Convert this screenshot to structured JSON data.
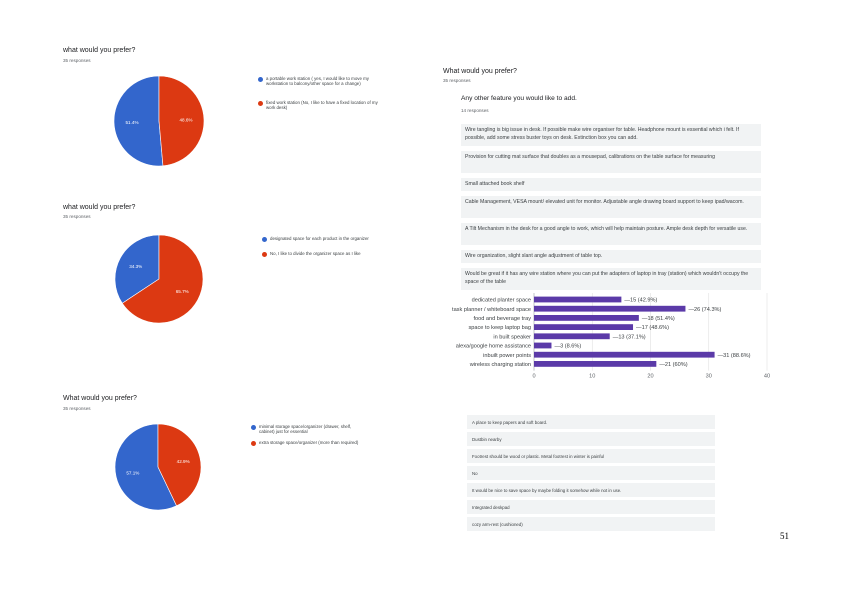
{
  "page_number": "51",
  "colors": {
    "blue": "#3366cc",
    "red": "#dc3912",
    "purple": "#5b3aa8",
    "box_bg": "#f1f3f4"
  },
  "q1": {
    "title": "what would you prefer?",
    "responses": "35 responses",
    "chart_data": {
      "type": "pie",
      "labels": [
        "a portable work station ( yes, I would like to move my workstation to balcony/other space for a change)",
        "fixed work station (No, I like to have a fixed location of my work desk)"
      ],
      "values": [
        51.4,
        48.6
      ],
      "data_labels": [
        "51.4%",
        "48.6%"
      ],
      "colors": [
        "#3366cc",
        "#dc3912"
      ]
    }
  },
  "q2": {
    "title": "what would you prefer?",
    "responses": "35 responses",
    "chart_data": {
      "type": "pie",
      "labels": [
        "designated space for each product in the organizer",
        "No, I like to divide the organizer space as I like"
      ],
      "values": [
        34.3,
        65.7
      ],
      "data_labels": [
        "34.3%",
        "65.7%"
      ],
      "colors": [
        "#3366cc",
        "#dc3912"
      ]
    }
  },
  "q3": {
    "title": "What would you prefer?",
    "responses": "35 responses",
    "chart_data": {
      "type": "pie",
      "labels": [
        "minimal storage space/organizer (drawer, shelf, cabinet) just for essential",
        "extra storage space/organizer (more than required)"
      ],
      "values": [
        57.1,
        42.9
      ],
      "data_labels": [
        "57.1%",
        "42.9%"
      ],
      "colors": [
        "#3366cc",
        "#dc3912"
      ]
    }
  },
  "q4": {
    "title": "What would you prefer?",
    "responses": "35 responses",
    "subquestion": "Any other feature you would like to add.",
    "sub_responses": "14 responses",
    "answers": [
      "Wire tangling is big issue in desk. If possible make wire organiser for table. Headphone mount is essential which i felt. If possible, add some stress buster toys on desk. Extinction box you can add.",
      "Provision for cutting mat surface that doubles as a mousepad, calibrations on the table surface for measuring",
      "Small attached book shelf",
      "Cable Management, VESA mount/ elevated unit for monitor. Adjustable angle drawing board support to keep ipad/wacom.",
      "A Tilt Mechanism in the desk for a good angle to work, which will help maintain posture. Ample desk depth for versatile use.",
      "Wire organization, slight slant angle adjustment of table top.",
      "Would be great if it has any wire station where you can put the adapters of laptop in tray (station) which wouldn't occupy the space of the table"
    ]
  },
  "bar": {
    "chart_data": {
      "type": "bar",
      "orientation": "horizontal",
      "categories": [
        "dedicated planter space",
        "task planner / whiteboard space",
        "food and beverage tray",
        "space to keep laptop bag",
        "in built speaker",
        "alexa/google home assistance",
        "inbuilt power points",
        "wireless charging station"
      ],
      "values": [
        15,
        26,
        18,
        17,
        13,
        3,
        31,
        21
      ],
      "value_labels": [
        "15 (42.9%)",
        "26 (74.3%)",
        "18 (51.4%)",
        "17 (48.6%)",
        "13 (37.1%)",
        "3 (8.6%)",
        "31 (88.6%)",
        "21 (60%)"
      ],
      "xticks": [
        "0",
        "10",
        "20",
        "30",
        "40"
      ],
      "xlim": [
        0,
        40
      ],
      "color": "#5b3aa8",
      "grid": true
    }
  },
  "q5": {
    "answers": [
      "A place to keep papers and soft board.",
      "Dustbin nearby",
      "Footrest should be wood or plastic. Metal footrest in winter is painful",
      "No",
      "It would be nice to save space by maybe folding it somehow while not in use.",
      "Integrated deskpad",
      "cozy arm-rest (cushioned)"
    ]
  }
}
